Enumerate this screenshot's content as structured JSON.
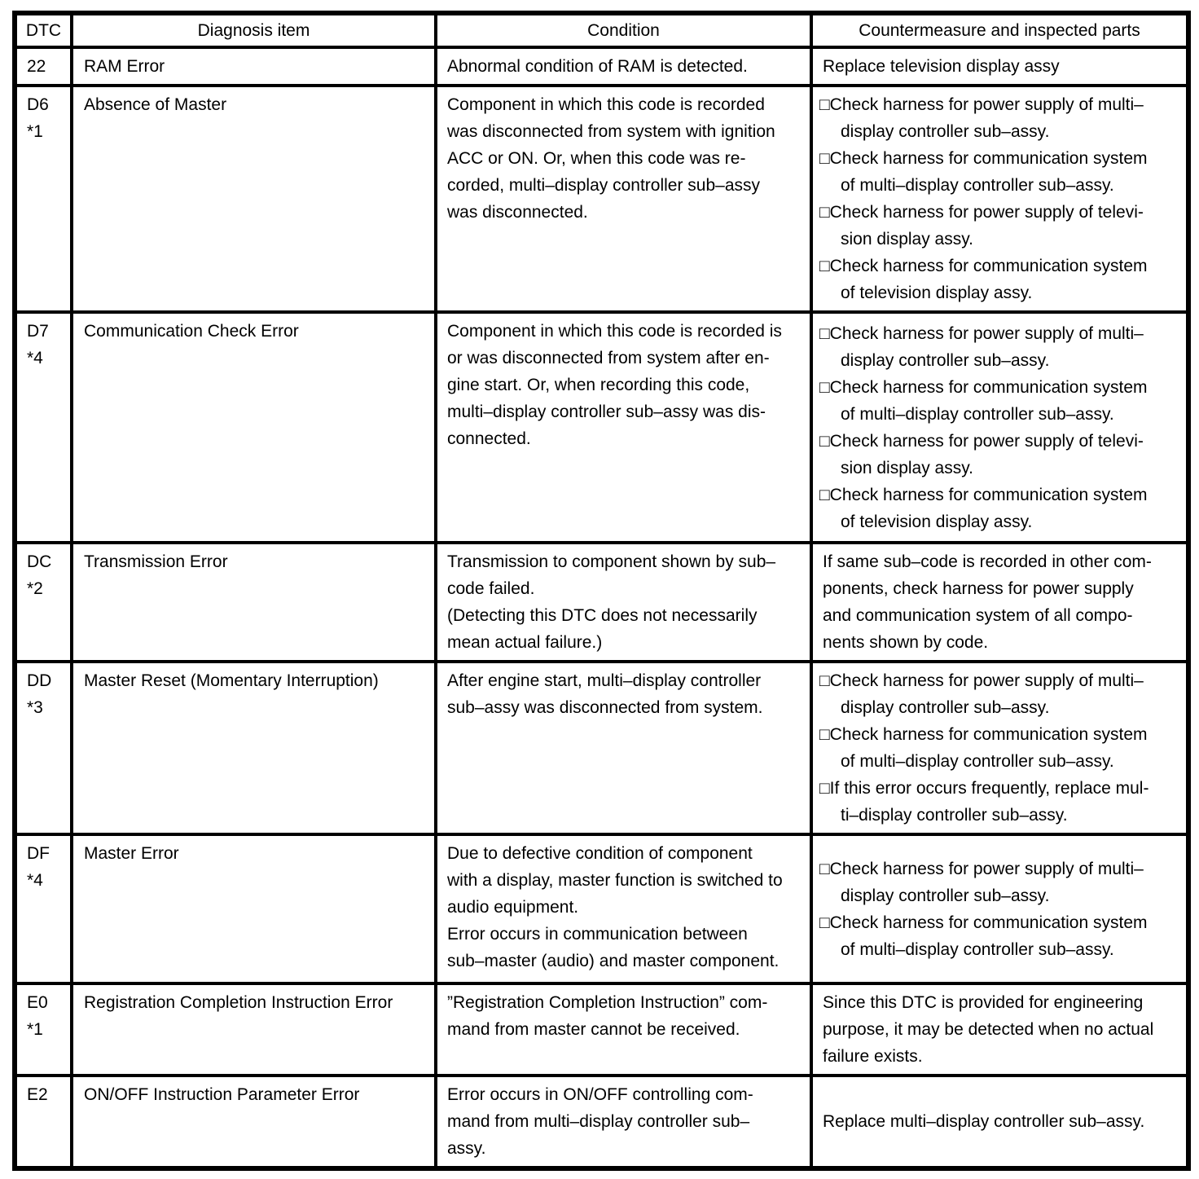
{
  "colors": {
    "border": "#000000",
    "text": "#000000",
    "background": "#ffffff"
  },
  "table": {
    "headers": {
      "dtc": "DTC",
      "item": "Diagnosis item",
      "condition": "Condition",
      "countermeasure": "Countermeasure and inspected parts"
    },
    "rows": [
      {
        "code": "22",
        "item": "RAM Error",
        "condition": "Abnormal condition of RAM is detected.",
        "countermeasure_text": "Replace television display assy"
      },
      {
        "code": "D6",
        "note": "*1",
        "item": "Absence of Master",
        "condition": "Component in which this code is recorded\nwas disconnected from system with ignition\nACC or ON. Or, when this code was re-\ncorded, multi–display controller sub–assy\nwas disconnected.",
        "countermeasures": [
          "□Check harness for power supply of multi–\ndisplay controller sub–assy.",
          "□Check harness for communication system\nof multi–display controller sub–assy.",
          "□Check harness for power supply of televi-\nsion display assy.",
          "□Check harness for communication system\nof television display assy."
        ]
      },
      {
        "code": "D7",
        "note": "*4",
        "item": "Communication Check Error",
        "condition": "Component in which this code is recorded is\nor was disconnected from system after en-\ngine start. Or, when recording this code,\nmulti–display controller sub–assy was dis-\nconnected.",
        "countermeasures": [
          "□Check harness for power supply of multi–\ndisplay controller sub–assy.",
          "□Check harness for communication system\nof multi–display controller sub–assy.",
          "□Check harness for power supply of televi-\nsion display assy.",
          "□Check harness for communication system\nof television display assy."
        ]
      },
      {
        "code": "DC",
        "note": "*2",
        "item": "Transmission Error",
        "condition": "Transmission to component shown by sub–\ncode failed.\n(Detecting this DTC does not necessarily\nmean actual failure.)",
        "countermeasure_text": "If same sub–code is recorded in other com-\nponents, check harness for power supply\nand communication system of all compo-\nnents shown by code."
      },
      {
        "code": "DD",
        "note": "*3",
        "item": "Master Reset (Momentary Interruption)",
        "condition": "After engine start, multi–display controller\nsub–assy was disconnected from system.",
        "countermeasures": [
          "□Check harness for power supply of multi–\ndisplay controller sub–assy.",
          "□Check harness for communication system\nof multi–display controller sub–assy.",
          "□If this error occurs frequently, replace mul-\nti–display controller sub–assy."
        ]
      },
      {
        "code": "DF",
        "note": "*4",
        "item": "Master Error",
        "condition": "Due to defective condition of component\nwith a display, master function is switched to\naudio equipment.\nError occurs in communication between\nsub–master (audio) and master component.",
        "countermeasures": [
          "□Check harness for power supply of multi–\ndisplay controller sub–assy.",
          "□Check harness for communication system\nof multi–display controller sub–assy."
        ]
      },
      {
        "code": "E0",
        "note": "*1",
        "item": "Registration Completion Instruction Error",
        "condition": "”Registration Completion Instruction” com-\nmand from master cannot be received.",
        "countermeasure_text": "Since this DTC is provided for engineering\npurpose, it may be detected when no actual\nfailure exists."
      },
      {
        "code": "E2",
        "item": "ON/OFF Instruction Parameter Error",
        "condition": "Error occurs in ON/OFF controlling com-\nmand from multi–display controller sub–\nassy.",
        "countermeasure_text": "Replace multi–display controller sub–assy."
      }
    ]
  }
}
